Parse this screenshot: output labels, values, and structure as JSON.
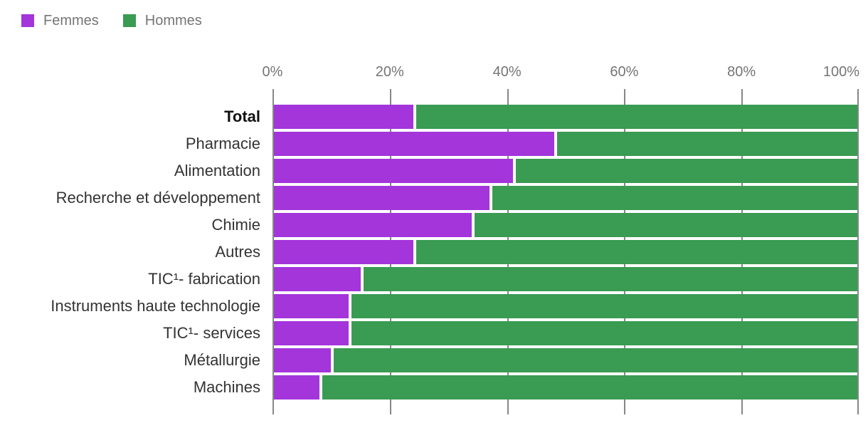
{
  "legend": {
    "items": [
      {
        "label": "Femmes",
        "color": "#a335db"
      },
      {
        "label": "Hommes",
        "color": "#3a9b52"
      }
    ]
  },
  "colors": {
    "femmes": "#a335db",
    "hommes": "#3a9b52",
    "gridline": "#878787",
    "axis_text": "#757575",
    "category_text": "#333333"
  },
  "chart_data": {
    "type": "bar",
    "stacked": true,
    "orientation": "horizontal",
    "unit": "percent",
    "title": "",
    "categories": [
      "Total",
      "Pharmacie",
      "Alimentation",
      "Recherche et développement",
      "Chimie",
      "Autres",
      "TIC¹- fabrication",
      "Instruments haute technologie",
      "TIC¹- services",
      "Métallurgie",
      "Machines"
    ],
    "emphasized_category": "Total",
    "series": [
      {
        "name": "Femmes",
        "color": "#a335db",
        "values": [
          24,
          48,
          41,
          37,
          34,
          24,
          15,
          13,
          13,
          10,
          8
        ]
      },
      {
        "name": "Hommes",
        "color": "#3a9b52",
        "values": [
          76,
          52,
          59,
          63,
          66,
          76,
          85,
          87,
          87,
          90,
          92
        ]
      }
    ],
    "x_axis": {
      "min": 0,
      "max": 100,
      "tick_labels": [
        "0%",
        "20%",
        "40%",
        "60%",
        "80%",
        "100%"
      ],
      "grid": true
    },
    "legend_position": "top-left"
  }
}
